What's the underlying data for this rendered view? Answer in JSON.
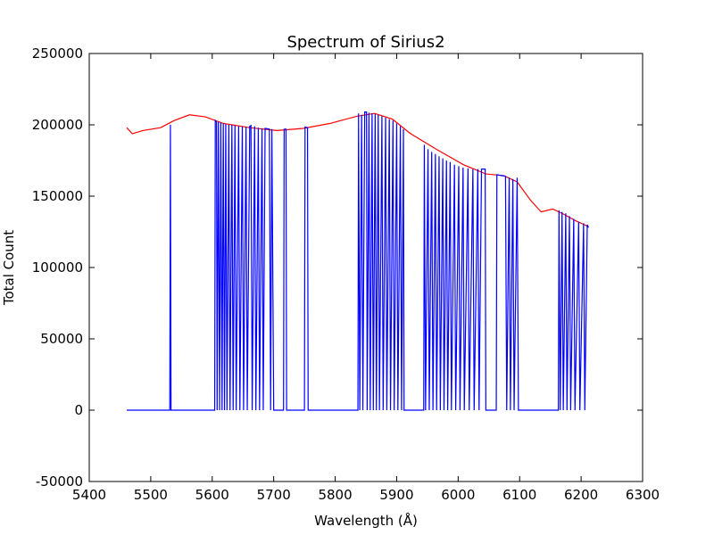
{
  "chart_data": {
    "type": "line",
    "title": "Spectrum of Sirius2",
    "x_label": "Wavelength (Å)",
    "y_label": "Total Count",
    "xlim": [
      5400,
      6300
    ],
    "xticks": [
      5400,
      5500,
      5600,
      5700,
      5800,
      5900,
      6000,
      6100,
      6200,
      6300
    ],
    "ylim": [
      -50000,
      250000
    ],
    "yticks": [
      -50000,
      0,
      50000,
      100000,
      150000,
      200000,
      250000
    ],
    "grid": false,
    "series": [
      {
        "color": "#ff0000",
        "x": [
          5461,
          5470,
          5487,
          5516,
          5538,
          5563,
          5589,
          5618,
          5661,
          5705,
          5748,
          5792,
          5835,
          5864,
          5893,
          5922,
          5966,
          6009,
          6045,
          6074,
          6096,
          6118,
          6135,
          6154,
          6171,
          6190,
          6210
        ],
        "values": [
          198000,
          193750,
          196000,
          198000,
          203000,
          207000,
          205600,
          201000,
          198000,
          196000,
          197500,
          201000,
          206000,
          208000,
          204000,
          194000,
          182500,
          172000,
          165600,
          164400,
          160000,
          147000,
          139000,
          141000,
          137500,
          133000,
          129000
        ]
      },
      {
        "color": "#0000ff",
        "x": [
          5461,
          5531,
          5532,
          5533,
          5604,
          5605,
          5607,
          5608,
          5610,
          5612,
          5614,
          5616,
          5618,
          5620,
          5622,
          5624,
          5627,
          5629,
          5632,
          5634,
          5637,
          5639,
          5643,
          5645,
          5649,
          5651,
          5655,
          5657,
          5661,
          5663,
          5665,
          5669,
          5671,
          5675,
          5677,
          5681,
          5683,
          5686,
          5693,
          5695,
          5697,
          5700,
          5716,
          5717,
          5720,
          5721,
          5750,
          5751,
          5755,
          5756,
          5837,
          5838,
          5840,
          5843,
          5845,
          5848,
          5851,
          5852,
          5855,
          5857,
          5860,
          5862,
          5865,
          5867,
          5870,
          5872,
          5876,
          5878,
          5882,
          5884,
          5888,
          5890,
          5894,
          5896,
          5900,
          5902,
          5906,
          5908,
          5911,
          5912,
          5944,
          5945,
          5947,
          5951,
          5953,
          5957,
          5959,
          5963,
          5965,
          5969,
          5971,
          5975,
          5977,
          5981,
          5983,
          5987,
          5989,
          5994,
          5996,
          6001,
          6003,
          6008,
          6010,
          6016,
          6018,
          6024,
          6026,
          6032,
          6034,
          6038,
          6044,
          6045,
          6062,
          6063,
          6077,
          6079,
          6083,
          6085,
          6089,
          6091,
          6096,
          6098,
          6163,
          6164,
          6166,
          6169,
          6171,
          6175,
          6177,
          6181,
          6183,
          6188,
          6190,
          6196,
          6198,
          6204,
          6206,
          6210,
          6212
        ],
        "values": [
          0,
          0,
          200000,
          0,
          0,
          203000,
          202000,
          0,
          202000,
          0,
          201500,
          0,
          201000,
          0,
          200500,
          0,
          200000,
          0,
          200000,
          0,
          199500,
          0,
          199000,
          0,
          199000,
          0,
          198500,
          0,
          199000,
          199500,
          0,
          199000,
          0,
          198000,
          0,
          197500,
          0,
          197500,
          197000,
          0,
          197000,
          0,
          0,
          197000,
          197000,
          0,
          0,
          198500,
          198000,
          0,
          0,
          208000,
          0,
          207000,
          0,
          209000,
          209000,
          0,
          208500,
          0,
          208000,
          0,
          207500,
          0,
          207000,
          0,
          206000,
          0,
          205000,
          0,
          204000,
          0,
          203000,
          0,
          201000,
          0,
          199000,
          0,
          197000,
          0,
          0,
          186000,
          0,
          183000,
          0,
          181000,
          0,
          179500,
          0,
          178000,
          0,
          176500,
          0,
          175000,
          0,
          174000,
          0,
          172000,
          0,
          171000,
          0,
          170000,
          0,
          169500,
          0,
          169000,
          0,
          169000,
          0,
          169000,
          169000,
          0,
          0,
          165000,
          164000,
          0,
          163000,
          0,
          162000,
          0,
          163000,
          0,
          0,
          140000,
          0,
          139000,
          0,
          138000,
          0,
          136000,
          0,
          134000,
          0,
          132000,
          0,
          131000,
          0,
          130000,
          128000
        ]
      }
    ]
  }
}
